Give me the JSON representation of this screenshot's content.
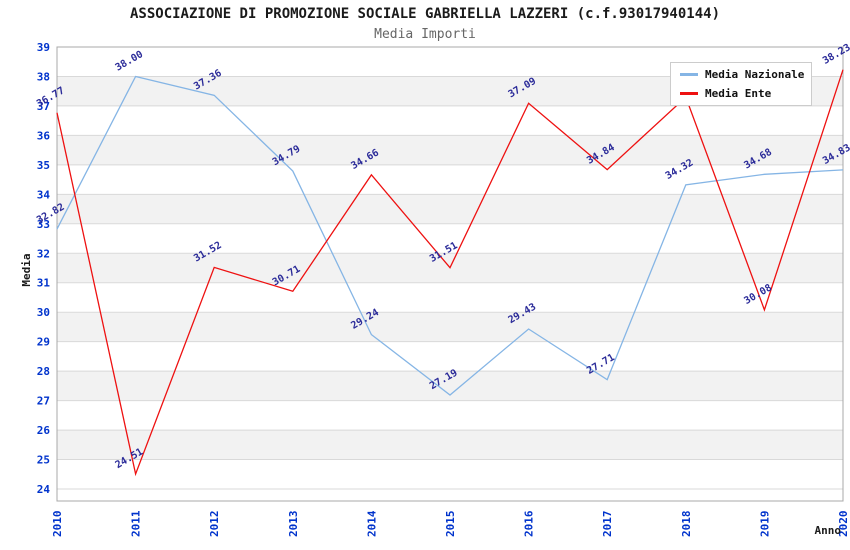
{
  "header": {
    "title": "ASSOCIAZIONE DI PROMOZIONE SOCIALE GABRIELLA LAZZERI (c.f.93017940144)",
    "subtitle": "Media Importi"
  },
  "legend": {
    "position": "top-right",
    "items": [
      {
        "label": "Media Nazionale",
        "color": "#85B5E5"
      },
      {
        "label": "Media Ente",
        "color": "#EE1111"
      }
    ]
  },
  "chart_data": {
    "type": "line",
    "title": "ASSOCIAZIONE DI PROMOZIONE SOCIALE GABRIELLA LAZZERI (c.f.93017940144)",
    "subtitle": "Media Importi",
    "xlabel": "Anno",
    "ylabel": "Media",
    "x_labels": [
      "2010",
      "2011",
      "2012",
      "2013",
      "2014",
      "2015",
      "2016",
      "2017",
      "2018",
      "2019",
      "2020"
    ],
    "ylim": [
      24,
      39
    ],
    "y_tick_step": 1,
    "grid": "horizontal lines each unit with alternating shaded bands",
    "legend_position": "top-right",
    "value_label_decimals": 2,
    "series": [
      {
        "name": "Media Nazionale",
        "color": "#85B5E5",
        "values": [
          32.82,
          38.0,
          37.36,
          34.79,
          29.24,
          27.19,
          29.43,
          27.71,
          34.32,
          34.68,
          34.83
        ],
        "hidden_label_indexes": []
      },
      {
        "name": "Media Ente",
        "color": "#EE1111",
        "values": [
          36.77,
          24.51,
          31.52,
          30.71,
          34.66,
          31.51,
          37.09,
          34.84,
          37.3,
          30.08,
          38.23
        ],
        "hidden_label_indexes": [
          8
        ]
      }
    ]
  },
  "colors": {
    "tick_label": "#0033CC",
    "value_label": "#2B2B99",
    "band_fill": "#F2F2F2",
    "grid_line": "#D9D9D9",
    "plot_border": "#A8A8A8",
    "series_nazionale": "#85B5E5",
    "series_ente": "#EE1111"
  }
}
